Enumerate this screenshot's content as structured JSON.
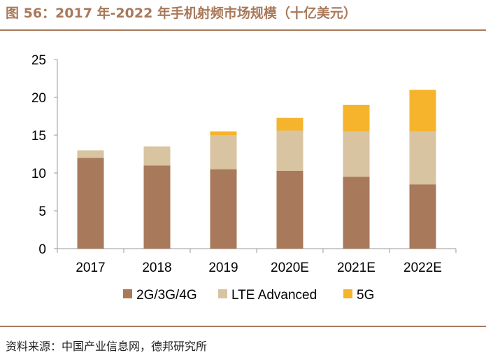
{
  "header": {
    "title": "图 56：2017 年-2022 年手机射频市场规模（十亿美元）"
  },
  "footer": {
    "source": "资料来源：中国产业信息网，德邦研究所"
  },
  "colors": {
    "title": "#a8795a",
    "s1": "#a8795a",
    "s2": "#d8c4a0",
    "s3": "#f5b42c",
    "axis": "#999999"
  },
  "chart_data": {
    "type": "bar",
    "stacked": true,
    "title": "图 56：2017 年-2022 年手机射频市场规模（十亿美元）",
    "categories": [
      "2017",
      "2018",
      "2019",
      "2020E",
      "2021E",
      "2022E"
    ],
    "series": [
      {
        "name": "2G/3G/4G",
        "values": [
          12,
          11,
          10.5,
          10.3,
          9.5,
          8.5
        ]
      },
      {
        "name": "LTE Advanced",
        "values": [
          1,
          2.5,
          4.5,
          5.3,
          6,
          7
        ]
      },
      {
        "name": "5G",
        "values": [
          0,
          0,
          0.5,
          1.7,
          3.5,
          5.5
        ]
      }
    ],
    "ylim": [
      0,
      25
    ],
    "yticks": [
      0,
      5,
      10,
      15,
      20,
      25
    ],
    "legend": "bottom"
  }
}
